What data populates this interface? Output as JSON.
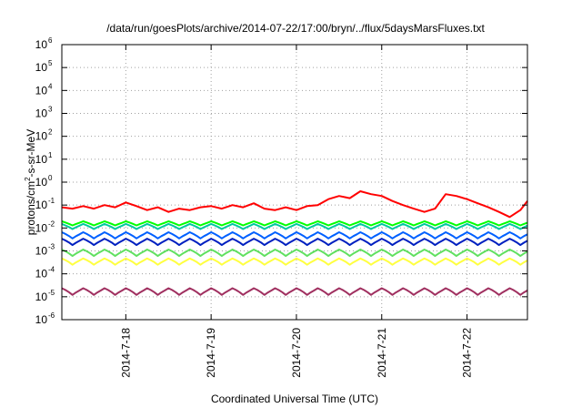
{
  "chart_data": {
    "type": "line",
    "title": "/data/run/goesPlots/archive/2014-07-22/17:00/bryn/../flux/5daysMarsFluxes.txt",
    "xlabel": "Coordinated Universal Time (UTC)",
    "ylabel": "protons/cm²-s-sr-MeV",
    "ylabel_parts": {
      "before": "protons/cm",
      "sup": "2",
      "after": "-s-sr-MeV"
    },
    "y_scale": "log",
    "ylim": [
      1e-06,
      1000000.0
    ],
    "xlim": [
      "2014-07-17T06:00",
      "2014-07-22T17:00"
    ],
    "grid": true,
    "y_ticks": [
      {
        "base": "10",
        "exp": "-6",
        "value": 1e-06
      },
      {
        "base": "10",
        "exp": "-5",
        "value": 1e-05
      },
      {
        "base": "10",
        "exp": "-4",
        "value": 0.0001
      },
      {
        "base": "10",
        "exp": "-3",
        "value": 0.001
      },
      {
        "base": "10",
        "exp": "-2",
        "value": 0.01
      },
      {
        "base": "10",
        "exp": "-1",
        "value": 0.1
      },
      {
        "base": "10",
        "exp": "0",
        "value": 1
      },
      {
        "base": "10",
        "exp": "1",
        "value": 10
      },
      {
        "base": "10",
        "exp": "2",
        "value": 100
      },
      {
        "base": "10",
        "exp": "3",
        "value": 1000
      },
      {
        "base": "10",
        "exp": "4",
        "value": 10000
      },
      {
        "base": "10",
        "exp": "5",
        "value": 100000
      },
      {
        "base": "10",
        "exp": "6",
        "value": 1000000
      }
    ],
    "x_ticks": [
      {
        "label": "2014-7-18",
        "value": "2014-07-18T00:00"
      },
      {
        "label": "2014-7-19",
        "value": "2014-07-19T00:00"
      },
      {
        "label": "2014-7-20",
        "value": "2014-07-20T00:00"
      },
      {
        "label": "2014-7-21",
        "value": "2014-07-21T00:00"
      },
      {
        "label": "2014-7-22",
        "value": "2014-07-22T00:00"
      }
    ],
    "series": [
      {
        "color": "#ff0000",
        "x": [
          "2014-07-17T06:00",
          "2014-07-17T09:00",
          "2014-07-17T12:00",
          "2014-07-17T15:00",
          "2014-07-17T18:00",
          "2014-07-17T21:00",
          "2014-07-18T00:00",
          "2014-07-18T03:00",
          "2014-07-18T06:00",
          "2014-07-18T09:00",
          "2014-07-18T12:00",
          "2014-07-18T15:00",
          "2014-07-18T18:00",
          "2014-07-18T21:00",
          "2014-07-19T00:00",
          "2014-07-19T03:00",
          "2014-07-19T06:00",
          "2014-07-19T09:00",
          "2014-07-19T12:00",
          "2014-07-19T15:00",
          "2014-07-19T18:00",
          "2014-07-19T21:00",
          "2014-07-20T00:00",
          "2014-07-20T03:00",
          "2014-07-20T06:00",
          "2014-07-20T09:00",
          "2014-07-20T12:00",
          "2014-07-20T15:00",
          "2014-07-20T18:00",
          "2014-07-20T21:00",
          "2014-07-21T00:00",
          "2014-07-21T03:00",
          "2014-07-21T06:00",
          "2014-07-21T09:00",
          "2014-07-21T12:00",
          "2014-07-21T15:00",
          "2014-07-21T18:00",
          "2014-07-21T21:00",
          "2014-07-22T00:00",
          "2014-07-22T03:00",
          "2014-07-22T06:00",
          "2014-07-22T09:00",
          "2014-07-22T12:00",
          "2014-07-22T15:00",
          "2014-07-22T17:00"
        ],
        "y": [
          0.08,
          0.07,
          0.09,
          0.07,
          0.1,
          0.08,
          0.13,
          0.09,
          0.06,
          0.08,
          0.05,
          0.07,
          0.06,
          0.08,
          0.09,
          0.07,
          0.1,
          0.08,
          0.12,
          0.07,
          0.06,
          0.08,
          0.06,
          0.09,
          0.1,
          0.18,
          0.25,
          0.2,
          0.4,
          0.3,
          0.25,
          0.15,
          0.1,
          0.07,
          0.05,
          0.07,
          0.3,
          0.25,
          0.18,
          0.12,
          0.08,
          0.05,
          0.03,
          0.06,
          0.15
        ]
      },
      {
        "color": "#00ff00",
        "base": 0.013,
        "amplitude": 0.0065,
        "period_hours": 6
      },
      {
        "color": "#00c8a0",
        "base": 0.009,
        "amplitude": 0.006,
        "period_hours": 6
      },
      {
        "color": "#0060ff",
        "base": 0.0035,
        "amplitude": 0.003,
        "period_hours": 6
      },
      {
        "color": "#0020c0",
        "base": 0.0018,
        "amplitude": 0.0016,
        "period_hours": 6
      },
      {
        "color": "#60e060",
        "base": 0.0006,
        "amplitude": 0.00055,
        "period_hours": 6
      },
      {
        "color": "#ffff40",
        "base": 0.00025,
        "amplitude": 0.00022,
        "period_hours": 6
      },
      {
        "color": "#a03060",
        "base": 1.2e-05,
        "amplitude": 1.15e-05,
        "period_hours": 6
      }
    ]
  }
}
